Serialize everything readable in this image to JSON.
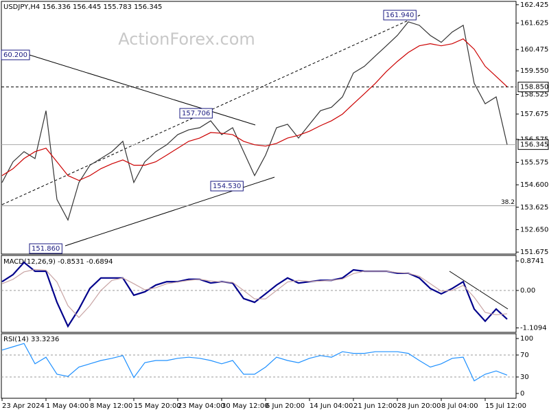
{
  "chart_data": [
    {
      "type": "line",
      "title": "USDJPY,H4  156.336 156.445 155.783 156.345",
      "watermark": "ActionForex.com",
      "categories": [
        "23 Apr 2024",
        null,
        null,
        null,
        "1 May 04:00",
        null,
        null,
        null,
        "8 May 12:00",
        null,
        null,
        null,
        "15 May 20:00",
        null,
        null,
        null,
        "23 May 04:00",
        null,
        null,
        null,
        "30 May 12:00",
        null,
        null,
        null,
        "6 Jun 20:00",
        null,
        null,
        null,
        "14 Jun 04:00",
        null,
        null,
        null,
        "21 Jun 12:00",
        null,
        null,
        null,
        "28 Jun 20:00",
        null,
        null,
        null,
        "8 Jul 04:00",
        null,
        null,
        null,
        "15 Jul 12:00",
        null,
        null
      ],
      "series": [
        {
          "color": "#333333",
          "values": [
            154.7,
            155.6,
            156.04,
            155.74,
            157.82,
            153.96,
            153.07,
            154.7,
            155.45,
            155.74,
            156.04,
            156.49,
            154.7,
            155.6,
            156.04,
            156.34,
            156.78,
            156.99,
            157.08,
            157.38,
            156.78,
            157.08,
            156.04,
            155.0,
            155.89,
            157.08,
            157.23,
            156.63,
            157.23,
            157.82,
            157.97,
            158.42,
            159.46,
            159.75,
            160.2,
            160.64,
            161.09,
            161.68,
            161.53,
            161.09,
            160.79,
            161.24,
            161.53,
            159.01,
            158.12,
            158.42,
            156.345
          ]
        },
        {
          "color": "#cc0000",
          "values": [
            155.0,
            155.3,
            155.74,
            156.04,
            156.19,
            155.6,
            155.0,
            154.79,
            155.0,
            155.3,
            155.51,
            155.68,
            155.45,
            155.45,
            155.6,
            155.89,
            156.19,
            156.49,
            156.63,
            156.87,
            156.84,
            156.78,
            156.49,
            156.34,
            156.28,
            156.4,
            156.63,
            156.75,
            156.93,
            157.17,
            157.38,
            157.67,
            158.12,
            158.56,
            159.01,
            159.52,
            159.96,
            160.35,
            160.64,
            160.73,
            160.64,
            160.73,
            160.94,
            160.49,
            159.75,
            159.31,
            158.86
          ]
        }
      ],
      "ylim": [
        151.59,
        162.57
      ],
      "yticks": [
        162.425,
        161.625,
        160.475,
        {
          "value": 159.55,
          "label": "159.550"
        },
        158.525,
        157.675,
        156.575,
        155.575,
        {
          "value": 154.6,
          "label": "154.600"
        },
        153.625,
        {
          "value": 152.65,
          "label": "152.650"
        },
        151.675
      ],
      "levels": [
        {
          "value": 158.85,
          "label": "158.850",
          "style": "dashed"
        },
        {
          "value": 156.345,
          "label": "156.345",
          "style": "solid"
        }
      ],
      "fib_price": 153.69,
      "fib_ratio_label": "38.2",
      "annotations": [
        "60.200",
        "157.706",
        "154.530",
        "151.860",
        "161.940"
      ]
    },
    {
      "type": "line",
      "title": "MACD(12,26,9) -0.8531 -0.6894",
      "series": [
        {
          "color": "#00008b",
          "values": [
            0.26,
            0.47,
            0.83,
            0.57,
            0.57,
            -0.35,
            -1.06,
            -0.55,
            0.06,
            0.37,
            0.37,
            0.37,
            -0.14,
            -0.04,
            0.16,
            0.26,
            0.26,
            0.33,
            0.33,
            0.22,
            0.26,
            0.22,
            -0.24,
            -0.35,
            -0.1,
            0.16,
            0.37,
            0.22,
            0.26,
            0.3,
            0.3,
            0.37,
            0.61,
            0.57,
            0.57,
            0.57,
            0.51,
            0.51,
            0.37,
            0.06,
            -0.1,
            0.06,
            0.26,
            -0.55,
            -0.91,
            -0.55,
            -0.85
          ]
        },
        {
          "color": "#c8a4a4",
          "values": [
            0.2,
            0.33,
            0.55,
            0.62,
            0.6,
            0.25,
            -0.45,
            -0.8,
            -0.45,
            0.0,
            0.3,
            0.37,
            0.2,
            0.02,
            0.08,
            0.2,
            0.25,
            0.3,
            0.33,
            0.28,
            0.25,
            0.24,
            0.0,
            -0.25,
            -0.25,
            0.0,
            0.25,
            0.3,
            0.27,
            0.28,
            0.3,
            0.34,
            0.5,
            0.57,
            0.57,
            0.57,
            0.53,
            0.51,
            0.42,
            0.2,
            -0.02,
            0.0,
            0.15,
            -0.2,
            -0.65,
            -0.72,
            -0.69
          ]
        }
      ],
      "ylim": [
        -1.24,
        1.037
      ],
      "yticks": [
        0.8741,
        {
          "value": 0,
          "label": "0.00"
        },
        -1.1094
      ],
      "dashed_levels": [
        0
      ]
    },
    {
      "type": "line",
      "title": "RSI(14) 33.3236",
      "series": [
        {
          "color": "#1e90ff",
          "values": [
            79,
            85,
            91,
            54,
            66,
            35,
            31,
            48,
            54,
            60,
            64,
            69,
            29,
            56,
            60,
            60,
            64,
            66,
            64,
            60,
            54,
            60,
            35,
            35,
            48,
            66,
            60,
            56,
            64,
            69,
            66,
            76,
            73,
            73,
            76,
            76,
            76,
            73,
            60,
            48,
            54,
            64,
            66,
            23,
            35,
            41,
            33.32
          ]
        }
      ],
      "ylim": [
        -8.75,
        108.75
      ],
      "yticks": [
        100,
        70,
        30,
        0
      ],
      "dashed_levels": [
        70,
        30
      ]
    }
  ]
}
